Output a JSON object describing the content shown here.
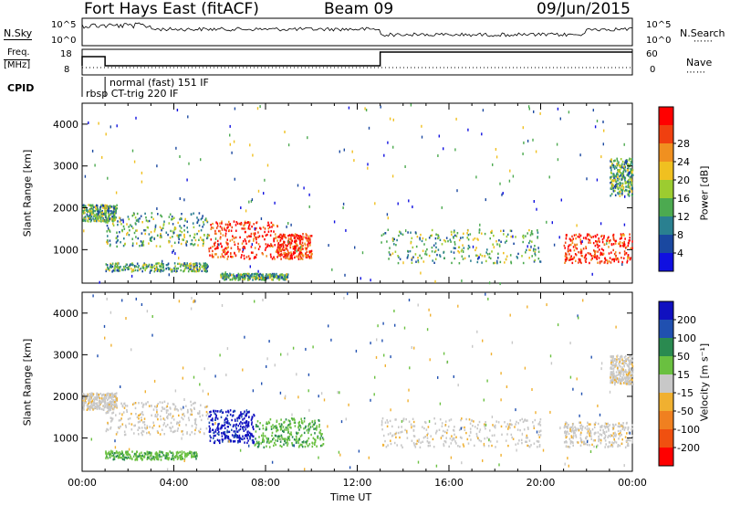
{
  "header": {
    "station": "Fort Hays East (fitACF)",
    "beam": "Beam 09",
    "date": "09/Jun/2015"
  },
  "status_panels": {
    "nsky_label": "N.Sky",
    "nsearch_label": "N.Search",
    "nsky_ticks": [
      "10^5",
      "10^0"
    ],
    "nsearch_ticks": [
      "10^5",
      "10^0"
    ],
    "freq_label_1": "Freq.",
    "freq_label_2": "[MHz]",
    "freq_ticks": [
      "18",
      "8"
    ],
    "nave_label": "Nave",
    "nave_ticks": [
      "60",
      "0"
    ],
    "cpid_label": "CPID",
    "cpid_mode_1": "normal (fast) 151 IF",
    "cpid_mode_2": "rbsp CT-trig 220 IF"
  },
  "chart_data": [
    {
      "type": "heatmap",
      "name": "power-panel",
      "ylabel": "Slant Range [km]",
      "xlabel": "",
      "ylim": [
        200,
        4500
      ],
      "xlim_hours": [
        0,
        24
      ],
      "y_ticks": [
        "1000",
        "2000",
        "3000",
        "4000"
      ],
      "colorbar": {
        "label": "Power [dB]",
        "ticks": [
          "4",
          "8",
          "12",
          "16",
          "20",
          "24",
          "28"
        ],
        "colors": [
          "#1010e0",
          "#1a48a0",
          "#2a8090",
          "#4caa50",
          "#9ccc30",
          "#f0c020",
          "#f09020",
          "#f04010",
          "#ff0000"
        ]
      },
      "features": [
        {
          "t0": 0.0,
          "t1": 1.5,
          "r0": 1700,
          "r1": 2100,
          "level": "medium"
        },
        {
          "t0": 1.0,
          "t1": 5.5,
          "r0": 1100,
          "r1": 1900,
          "level": "medium"
        },
        {
          "t0": 1.0,
          "t1": 5.5,
          "r0": 500,
          "r1": 700,
          "level": "medium"
        },
        {
          "t0": 5.5,
          "t1": 8.5,
          "r0": 800,
          "r1": 1700,
          "level": "high"
        },
        {
          "t0": 8.5,
          "t1": 10.0,
          "r0": 800,
          "r1": 1400,
          "level": "high"
        },
        {
          "t0": 6.0,
          "t1": 9.0,
          "r0": 300,
          "r1": 450,
          "level": "medium"
        },
        {
          "t0": 13.0,
          "t1": 20.0,
          "r0": 700,
          "r1": 1500,
          "level": "medium"
        },
        {
          "t0": 21.0,
          "t1": 24.0,
          "r0": 700,
          "r1": 1400,
          "level": "high"
        },
        {
          "t0": 23.0,
          "t1": 24.0,
          "r0": 2300,
          "r1": 3200,
          "level": "medium"
        }
      ]
    },
    {
      "type": "heatmap",
      "name": "velocity-panel",
      "ylabel": "Slant Range [km]",
      "xlabel": "Time UT",
      "ylim": [
        200,
        4500
      ],
      "xlim_hours": [
        0,
        24
      ],
      "x_ticks": [
        "00:00",
        "04:00",
        "08:00",
        "12:00",
        "16:00",
        "20:00",
        "00:00"
      ],
      "y_ticks": [
        "1000",
        "2000",
        "3000",
        "4000"
      ],
      "colorbar": {
        "label": "Velocity [m s⁻¹]",
        "ticks": [
          "200",
          "100",
          "50",
          "15",
          "-15",
          "-50",
          "-100",
          "-200"
        ],
        "colors": [
          "#1010c0",
          "#2050b0",
          "#2a8a50",
          "#6ac040",
          "#c8c8c8",
          "#f0b030",
          "#f08020",
          "#f05010",
          "#ff0000"
        ]
      },
      "features": [
        {
          "t0": 0.0,
          "t1": 1.5,
          "r0": 1700,
          "r1": 2100,
          "level": "ground"
        },
        {
          "t0": 1.0,
          "t1": 5.5,
          "r0": 1100,
          "r1": 1900,
          "level": "ground"
        },
        {
          "t0": 1.0,
          "t1": 5.0,
          "r0": 500,
          "r1": 700,
          "level": "positive-medium"
        },
        {
          "t0": 5.5,
          "t1": 7.5,
          "r0": 900,
          "r1": 1700,
          "level": "positive-high"
        },
        {
          "t0": 7.5,
          "t1": 10.5,
          "r0": 800,
          "r1": 1500,
          "level": "positive-medium"
        },
        {
          "t0": 13.0,
          "t1": 20.0,
          "r0": 800,
          "r1": 1500,
          "level": "ground"
        },
        {
          "t0": 21.0,
          "t1": 24.0,
          "r0": 800,
          "r1": 1400,
          "level": "ground"
        },
        {
          "t0": 23.0,
          "t1": 24.0,
          "r0": 2300,
          "r1": 3000,
          "level": "ground"
        }
      ]
    }
  ]
}
